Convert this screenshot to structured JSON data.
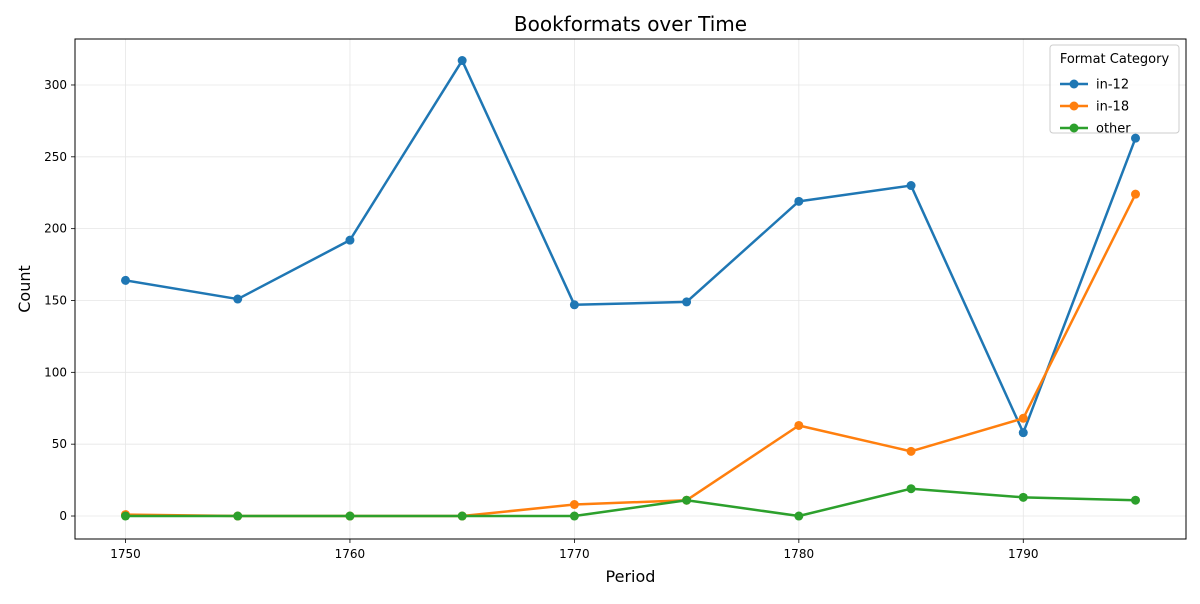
{
  "chart_data": {
    "type": "line",
    "title": "Bookformats over Time",
    "xlabel": "Period",
    "ylabel": "Count",
    "x": [
      1750,
      1755,
      1760,
      1765,
      1770,
      1775,
      1780,
      1785,
      1790,
      1795
    ],
    "xlim": [
      1747.75,
      1797.25
    ],
    "ylim": [
      -16,
      332
    ],
    "xticks": [
      1750,
      1760,
      1770,
      1780,
      1790
    ],
    "yticks": [
      0,
      50,
      100,
      150,
      200,
      250,
      300
    ],
    "grid": true,
    "legend": {
      "title": "Format Category",
      "placement": "top-right"
    },
    "series": [
      {
        "name": "in-12",
        "color": "#1f77b4",
        "values": [
          164,
          151,
          192,
          317,
          147,
          149,
          219,
          230,
          58,
          263
        ]
      },
      {
        "name": "in-18",
        "color": "#ff7f0e",
        "values": [
          1,
          0,
          0,
          0,
          8,
          11,
          63,
          45,
          68,
          224
        ]
      },
      {
        "name": "other",
        "color": "#2ca02c",
        "values": [
          0,
          0,
          0,
          0,
          0,
          11,
          0,
          19,
          13,
          11
        ]
      }
    ]
  }
}
